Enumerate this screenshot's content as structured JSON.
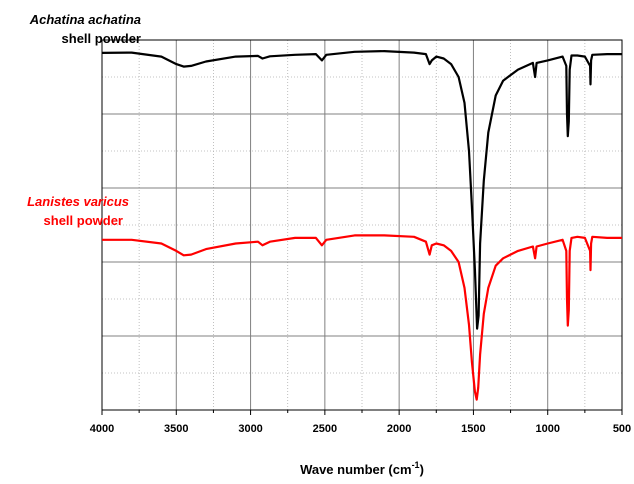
{
  "chart_data": {
    "type": "line",
    "xlabel": "Wave number (cm",
    "xlabel_sup": "-1",
    "xlabel_close": ")",
    "x_reversed": true,
    "xlim": [
      4000,
      500
    ],
    "x_ticks": [
      "4000",
      "3500",
      "3000",
      "2500",
      "2000",
      "1500",
      "1000",
      "500"
    ],
    "x_tick_values": [
      4000,
      3500,
      3000,
      2500,
      2000,
      1500,
      1000,
      500
    ],
    "ylim": [
      0,
      10
    ],
    "grid": true,
    "series": [
      {
        "species": "Achatina achatina",
        "label_second_line": "shell powder",
        "color": "#000000",
        "points": [
          [
            4000,
            9.65
          ],
          [
            3800,
            9.66
          ],
          [
            3600,
            9.55
          ],
          [
            3500,
            9.35
          ],
          [
            3450,
            9.28
          ],
          [
            3400,
            9.3
          ],
          [
            3300,
            9.42
          ],
          [
            3100,
            9.55
          ],
          [
            2950,
            9.57
          ],
          [
            2920,
            9.5
          ],
          [
            2870,
            9.56
          ],
          [
            2700,
            9.6
          ],
          [
            2560,
            9.62
          ],
          [
            2520,
            9.45
          ],
          [
            2490,
            9.6
          ],
          [
            2300,
            9.68
          ],
          [
            2100,
            9.7
          ],
          [
            1900,
            9.66
          ],
          [
            1820,
            9.62
          ],
          [
            1795,
            9.35
          ],
          [
            1780,
            9.45
          ],
          [
            1750,
            9.55
          ],
          [
            1700,
            9.5
          ],
          [
            1650,
            9.35
          ],
          [
            1600,
            9.0
          ],
          [
            1560,
            8.3
          ],
          [
            1530,
            7.0
          ],
          [
            1510,
            5.5
          ],
          [
            1490,
            3.8
          ],
          [
            1475,
            2.2
          ],
          [
            1465,
            2.55
          ],
          [
            1455,
            4.5
          ],
          [
            1430,
            6.2
          ],
          [
            1400,
            7.5
          ],
          [
            1350,
            8.5
          ],
          [
            1300,
            8.9
          ],
          [
            1200,
            9.2
          ],
          [
            1100,
            9.38
          ],
          [
            1085,
            9.0
          ],
          [
            1075,
            9.38
          ],
          [
            1000,
            9.45
          ],
          [
            900,
            9.55
          ],
          [
            875,
            9.3
          ],
          [
            870,
            8.0
          ],
          [
            865,
            7.4
          ],
          [
            858,
            7.8
          ],
          [
            852,
            9.2
          ],
          [
            840,
            9.58
          ],
          [
            800,
            9.58
          ],
          [
            750,
            9.55
          ],
          [
            715,
            9.3
          ],
          [
            712,
            8.8
          ],
          [
            708,
            9.45
          ],
          [
            700,
            9.6
          ],
          [
            600,
            9.62
          ],
          [
            500,
            9.62
          ]
        ]
      },
      {
        "species": "Lanistes varicus",
        "label_second_line": "shell powder",
        "color": "#ff0000",
        "points": [
          [
            4000,
            4.6
          ],
          [
            3800,
            4.6
          ],
          [
            3600,
            4.5
          ],
          [
            3500,
            4.3
          ],
          [
            3450,
            4.18
          ],
          [
            3400,
            4.2
          ],
          [
            3300,
            4.35
          ],
          [
            3100,
            4.5
          ],
          [
            2950,
            4.55
          ],
          [
            2920,
            4.45
          ],
          [
            2870,
            4.55
          ],
          [
            2700,
            4.65
          ],
          [
            2560,
            4.65
          ],
          [
            2520,
            4.45
          ],
          [
            2490,
            4.6
          ],
          [
            2300,
            4.72
          ],
          [
            2100,
            4.72
          ],
          [
            1900,
            4.68
          ],
          [
            1820,
            4.55
          ],
          [
            1795,
            4.2
          ],
          [
            1780,
            4.45
          ],
          [
            1750,
            4.5
          ],
          [
            1700,
            4.45
          ],
          [
            1650,
            4.3
          ],
          [
            1600,
            4.0
          ],
          [
            1560,
            3.3
          ],
          [
            1530,
            2.3
          ],
          [
            1510,
            1.3
          ],
          [
            1490,
            0.5
          ],
          [
            1478,
            0.28
          ],
          [
            1468,
            0.6
          ],
          [
            1455,
            1.5
          ],
          [
            1430,
            2.6
          ],
          [
            1400,
            3.3
          ],
          [
            1350,
            3.9
          ],
          [
            1300,
            4.1
          ],
          [
            1200,
            4.3
          ],
          [
            1100,
            4.42
          ],
          [
            1085,
            4.1
          ],
          [
            1075,
            4.42
          ],
          [
            1000,
            4.5
          ],
          [
            900,
            4.6
          ],
          [
            875,
            4.3
          ],
          [
            870,
            3.0
          ],
          [
            865,
            2.28
          ],
          [
            858,
            2.7
          ],
          [
            852,
            4.3
          ],
          [
            840,
            4.65
          ],
          [
            800,
            4.68
          ],
          [
            750,
            4.65
          ],
          [
            715,
            4.3
          ],
          [
            712,
            3.78
          ],
          [
            708,
            4.5
          ],
          [
            700,
            4.68
          ],
          [
            600,
            4.65
          ],
          [
            500,
            4.65
          ]
        ]
      }
    ]
  }
}
